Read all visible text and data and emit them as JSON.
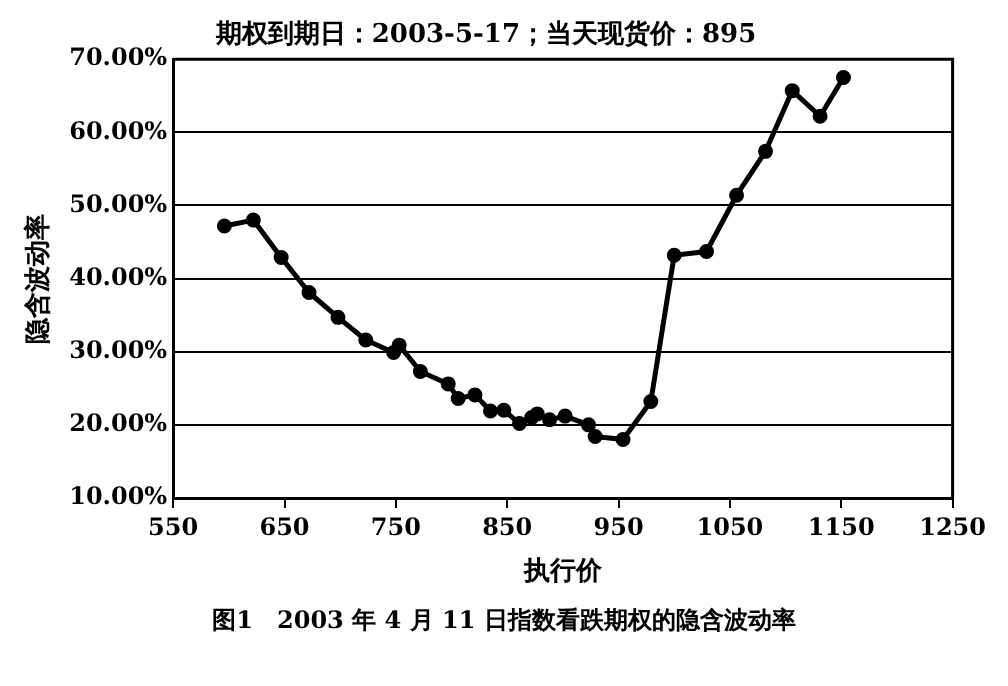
{
  "chart_data": {
    "type": "line",
    "title": "期权到期日：2003-5-17；当天现货价：895",
    "xlabel": "执行价",
    "ylabel": "隐含波动率",
    "annotations": [
      "图1　2003 年 4 月 11 日指数看跌期权的隐含波动率"
    ],
    "x": [
      596,
      622,
      647,
      672,
      698,
      723,
      748,
      753,
      772,
      797,
      806,
      821,
      835,
      847,
      861,
      872,
      877,
      888,
      902,
      923,
      929,
      954,
      979,
      1000,
      1029,
      1056,
      1082,
      1106,
      1131,
      1152
    ],
    "series": [
      {
        "color": "#000000",
        "values": [
          47.2,
          48.0,
          42.9,
          38.1,
          34.7,
          31.6,
          29.9,
          30.9,
          27.3,
          25.6,
          23.6,
          24.1,
          21.9,
          22.0,
          20.2,
          21.0,
          21.5,
          20.7,
          21.2,
          20.0,
          18.4,
          18.0,
          23.2,
          43.2,
          43.7,
          51.4,
          57.4,
          65.7,
          62.2,
          67.5
        ]
      }
    ],
    "xlim": [
      550,
      1250
    ],
    "xticks": [
      550,
      650,
      750,
      850,
      950,
      1050,
      1150,
      1250
    ],
    "ylim": [
      10,
      70
    ],
    "yticks": [
      {
        "value": 10,
        "label": "10.00%"
      },
      {
        "value": 20,
        "label": "20.00%"
      },
      {
        "value": 30,
        "label": "30.00%"
      },
      {
        "value": 40,
        "label": "40.00%"
      },
      {
        "value": 50,
        "label": "50.00%"
      },
      {
        "value": 60,
        "label": "60.00%"
      },
      {
        "value": 70,
        "label": "70.00%"
      }
    ],
    "grid": "y",
    "legend": false,
    "marker": "circle",
    "line_style": "solid"
  }
}
